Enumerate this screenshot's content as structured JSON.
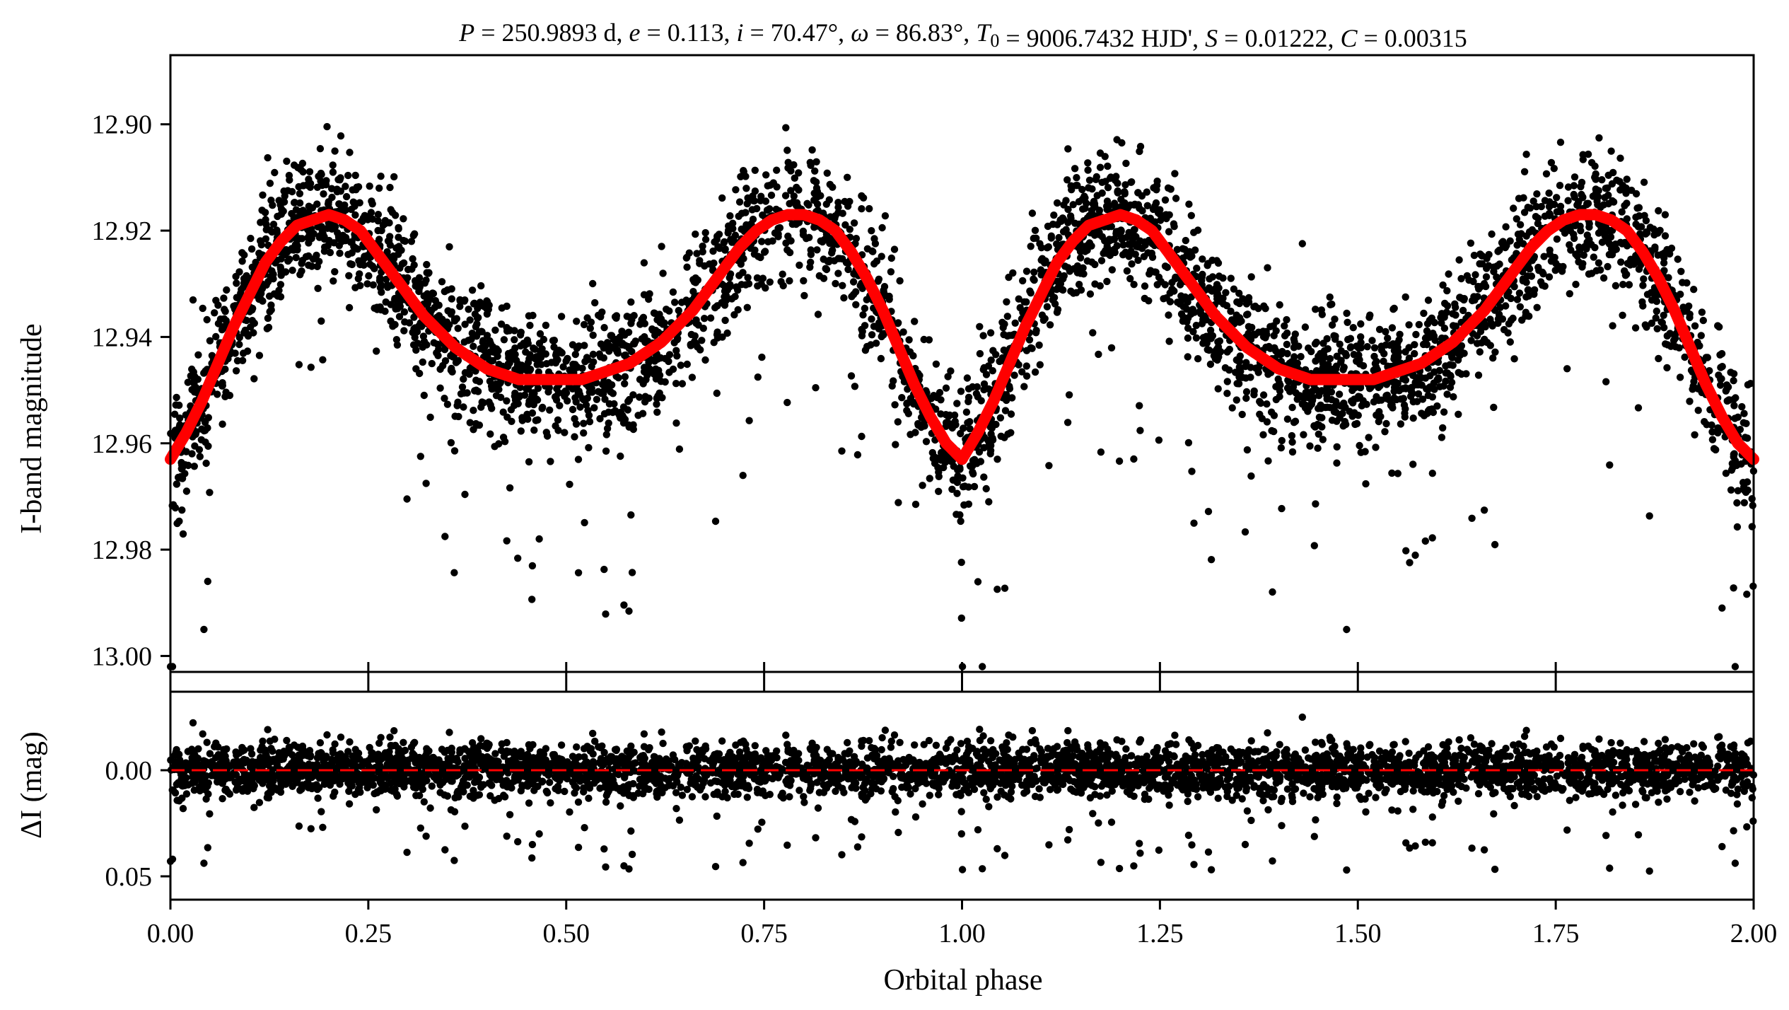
{
  "figure": {
    "title": "P = 250.9893 d, e = 0.113, i = 70.47°, ω = 86.83°, T0 = 9006.7432 HJD', S = 0.01222, C = 0.00315"
  },
  "chart_data": [
    {
      "id": "light-curve",
      "type": "scatter",
      "title": "P = 250.9893 d, e = 0.113, i = 70.47°, ω = 86.83°, T0 = 9006.7432 HJD', S = 0.01222, C = 0.00315",
      "xlabel": "",
      "ylabel": "I-band magnitude",
      "xlim": [
        0.0,
        2.0
      ],
      "ylim": [
        13.003,
        12.887
      ],
      "y_inverted": true,
      "x_ticks": [
        0.0,
        0.25,
        0.5,
        0.75,
        1.0,
        1.25,
        1.5,
        1.75,
        2.0
      ],
      "y_ticks": [
        12.9,
        12.92,
        12.94,
        12.96,
        12.98,
        13.0
      ],
      "y_tick_labels": [
        "12.90",
        "12.92",
        "12.94",
        "12.96",
        "12.98",
        "13.00"
      ],
      "grid": false,
      "series": [
        {
          "kind": "points",
          "color": "#000000",
          "note_points": "dense black photometric points scattered around the model (~0.006 mag rms), with sparse outliers down to ~12.997",
          "x": [
            0.0,
            0.02,
            0.04,
            0.06,
            0.08,
            0.1,
            0.12,
            0.14,
            0.16,
            0.18,
            0.2,
            0.22,
            0.24,
            0.26,
            0.28,
            0.3,
            0.32,
            0.34,
            0.36,
            0.38,
            0.4,
            0.42,
            0.44,
            0.46,
            0.48,
            0.5,
            0.52,
            0.54,
            0.56,
            0.58,
            0.6,
            0.62,
            0.64,
            0.66,
            0.68,
            0.7,
            0.72,
            0.74,
            0.76,
            0.78,
            0.8,
            0.82,
            0.84,
            0.86,
            0.88,
            0.9,
            0.92,
            0.94,
            0.96,
            0.98,
            1.0
          ],
          "y": [
            12.963,
            12.958,
            12.952,
            12.945,
            12.938,
            12.932,
            12.926,
            12.922,
            12.919,
            12.918,
            12.917,
            12.918,
            12.92,
            12.924,
            12.928,
            12.932,
            12.936,
            12.939,
            12.942,
            12.944,
            12.946,
            12.947,
            12.948,
            12.948,
            12.948,
            12.948,
            12.948,
            12.947,
            12.946,
            12.945,
            12.943,
            12.941,
            12.938,
            12.935,
            12.931,
            12.927,
            12.923,
            12.92,
            12.918,
            12.917,
            12.917,
            12.918,
            12.92,
            12.924,
            12.929,
            12.935,
            12.942,
            12.949,
            12.955,
            12.96,
            12.963
          ]
        },
        {
          "kind": "model",
          "color": "#ff0000",
          "x": [
            0.0,
            0.02,
            0.04,
            0.06,
            0.08,
            0.1,
            0.12,
            0.14,
            0.16,
            0.18,
            0.2,
            0.22,
            0.24,
            0.26,
            0.28,
            0.3,
            0.32,
            0.34,
            0.36,
            0.38,
            0.4,
            0.42,
            0.44,
            0.46,
            0.48,
            0.5,
            0.52,
            0.54,
            0.56,
            0.58,
            0.6,
            0.62,
            0.64,
            0.66,
            0.68,
            0.7,
            0.72,
            0.74,
            0.76,
            0.78,
            0.8,
            0.82,
            0.84,
            0.86,
            0.88,
            0.9,
            0.92,
            0.94,
            0.96,
            0.98,
            1.0
          ],
          "y": [
            12.963,
            12.958,
            12.952,
            12.945,
            12.938,
            12.932,
            12.926,
            12.922,
            12.919,
            12.918,
            12.917,
            12.918,
            12.92,
            12.924,
            12.928,
            12.932,
            12.936,
            12.939,
            12.942,
            12.944,
            12.946,
            12.947,
            12.948,
            12.948,
            12.948,
            12.948,
            12.948,
            12.947,
            12.946,
            12.945,
            12.943,
            12.941,
            12.938,
            12.935,
            12.931,
            12.927,
            12.923,
            12.92,
            12.918,
            12.917,
            12.917,
            12.918,
            12.92,
            12.924,
            12.929,
            12.935,
            12.942,
            12.949,
            12.955,
            12.96,
            12.963
          ],
          "repeat_period": 1.0
        }
      ]
    },
    {
      "id": "residuals",
      "type": "scatter",
      "title": "",
      "xlabel": "Orbital phase",
      "ylabel": "ΔI (mag)",
      "xlim": [
        0.0,
        2.0
      ],
      "ylim": [
        0.061,
        -0.037
      ],
      "y_inverted": true,
      "x_ticks": [
        0.0,
        0.25,
        0.5,
        0.75,
        1.0,
        1.25,
        1.5,
        1.75,
        2.0
      ],
      "x_tick_labels": [
        "0.00",
        "0.25",
        "0.50",
        "0.75",
        "1.00",
        "1.25",
        "1.50",
        "1.75",
        "2.00"
      ],
      "y_ticks": [
        0.0,
        0.05
      ],
      "y_tick_labels": [
        "0.00",
        "0.05"
      ],
      "grid": false,
      "series": [
        {
          "kind": "points",
          "color": "#000000",
          "note_points": "residual points scattered around 0 (~0.006 mag rms, mostly within ±0.02), sparse positive outliers to ~0.05",
          "y_center": 0.0
        },
        {
          "kind": "reference-line",
          "color": "#ff0000",
          "style": "dashed",
          "y": 0.0
        }
      ]
    }
  ]
}
